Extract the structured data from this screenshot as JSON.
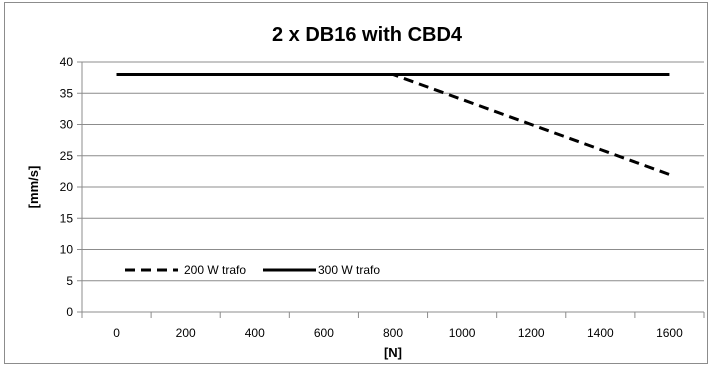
{
  "chart_data": {
    "type": "line",
    "title": "2 x DB16 with CBD4",
    "xlabel": "[N]",
    "ylabel": "[mm/s]",
    "x": [
      0,
      200,
      400,
      600,
      800,
      1000,
      1200,
      1400,
      1600
    ],
    "xlim": [
      -100,
      1700
    ],
    "ylim": [
      0,
      40
    ],
    "xticks": [
      "0",
      "200",
      "400",
      "600",
      "800",
      "1000",
      "1200",
      "1400",
      "1600"
    ],
    "yticks": [
      "0",
      "5",
      "10",
      "15",
      "20",
      "25",
      "30",
      "35",
      "40"
    ],
    "grid": "horizontal",
    "legend_position": "bottom-left",
    "series": [
      {
        "name": "200 W trafo",
        "style": "dashed",
        "color": "#000000",
        "values": [
          38,
          38,
          38,
          38,
          38,
          34,
          30,
          26,
          22
        ]
      },
      {
        "name": "300 W trafo",
        "style": "solid",
        "color": "#000000",
        "values": [
          38,
          38,
          38,
          38,
          38,
          38,
          38,
          38,
          38
        ]
      }
    ]
  }
}
